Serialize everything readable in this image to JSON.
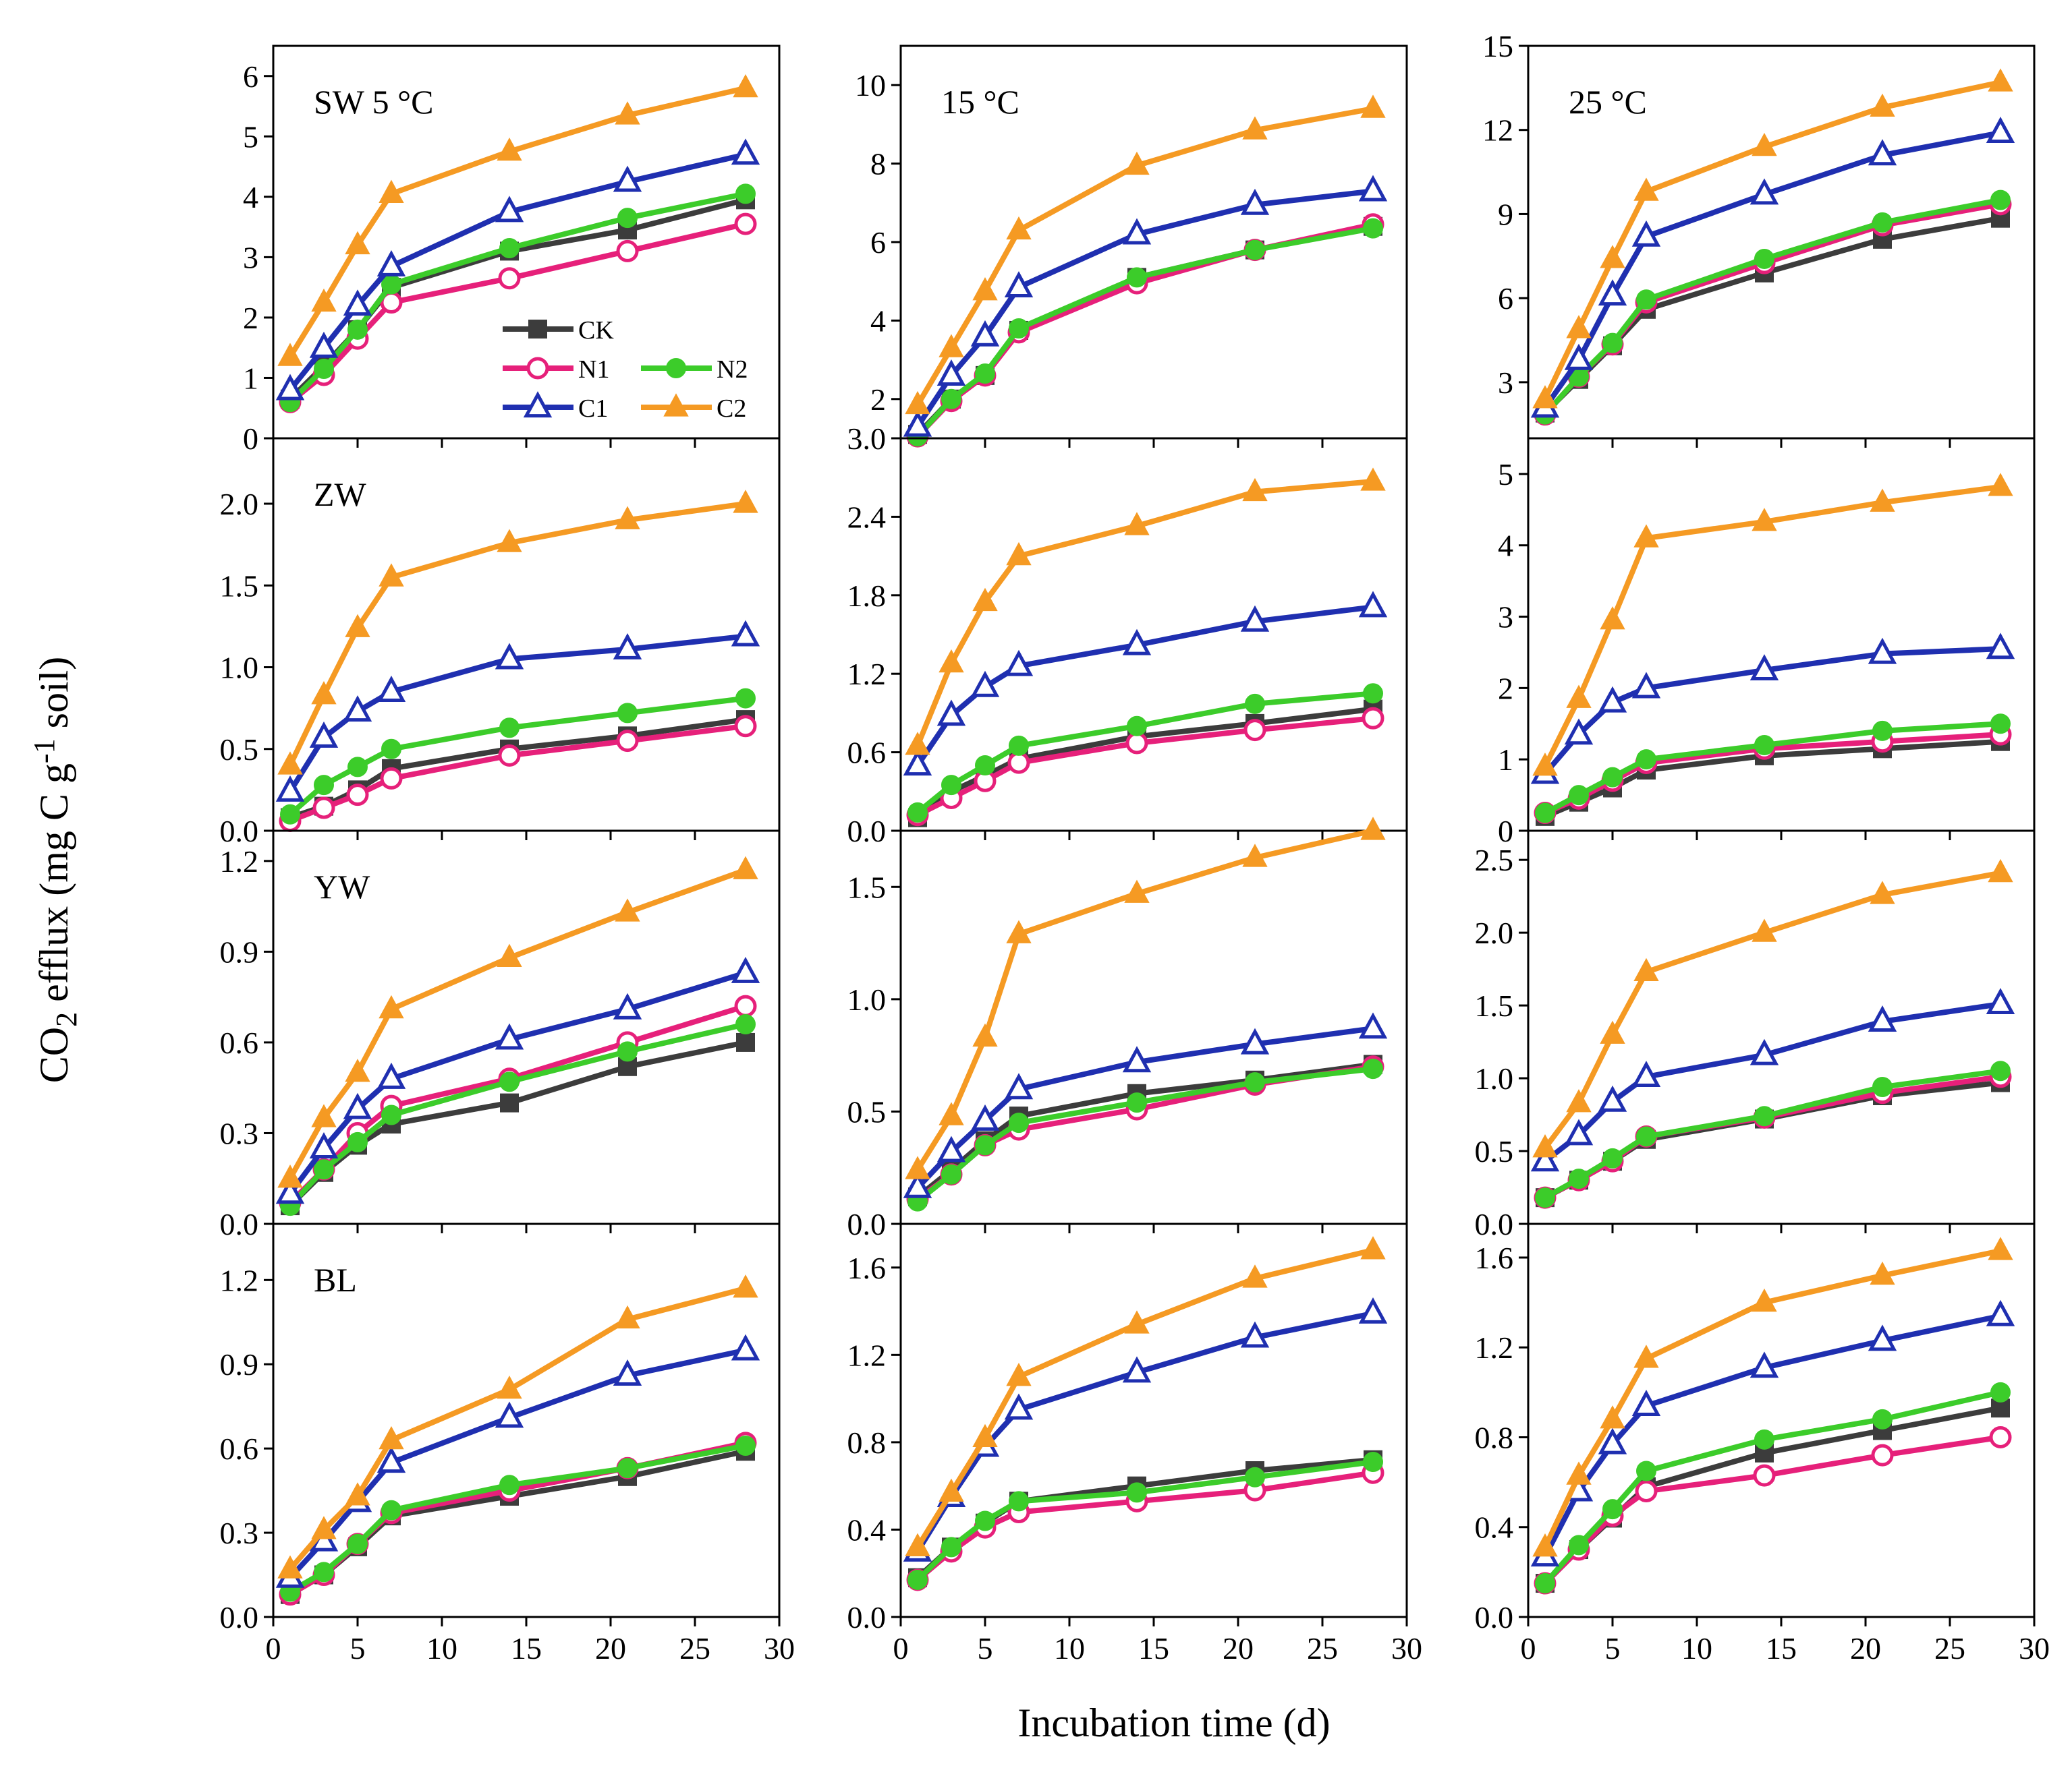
{
  "figure": {
    "ylabel": "CO2 efflux (mg C g-1 soil)",
    "ylabel_parts": {
      "a": "CO",
      "b": "2",
      "c": " efflux (mg C g",
      "d": "-1",
      "e": " soil)"
    },
    "xlabel": "Incubation time (d)"
  },
  "legend": [
    {
      "key": "CK",
      "label": "CK"
    },
    {
      "key": "N1",
      "label": "N1"
    },
    {
      "key": "N2",
      "label": "N2"
    },
    {
      "key": "C1",
      "label": "C1"
    },
    {
      "key": "C2",
      "label": "C2"
    }
  ],
  "series_styles": {
    "CK": {
      "color": "#3c3c3c",
      "marker": "square",
      "filled": true
    },
    "N1": {
      "color": "#e6207a",
      "marker": "circle",
      "filled": false
    },
    "N2": {
      "color": "#3ccc2a",
      "marker": "circle",
      "filled": true
    },
    "C1": {
      "color": "#1f2fb0",
      "marker": "triangle",
      "filled": false
    },
    "C2": {
      "color": "#f59a23",
      "marker": "triangle",
      "filled": true
    }
  },
  "chart_data": [
    {
      "type": "line",
      "row": 0,
      "col": 0,
      "label": "SW  5 °C",
      "ylim": [
        0,
        6.5
      ],
      "yticks": [
        0,
        1,
        2,
        3,
        4,
        5,
        6
      ],
      "xlim": [
        0,
        30
      ],
      "xticks": [
        0,
        5,
        10,
        15,
        20,
        25,
        30
      ],
      "show_xticklabels": false,
      "show_legend": true,
      "x": [
        1,
        3,
        5,
        7,
        14,
        21,
        28
      ],
      "series": [
        {
          "name": "CK",
          "values": [
            0.65,
            1.2,
            1.8,
            2.5,
            3.1,
            3.45,
            3.95
          ]
        },
        {
          "name": "N1",
          "values": [
            0.6,
            1.05,
            1.65,
            2.25,
            2.65,
            3.1,
            3.55
          ]
        },
        {
          "name": "N2",
          "values": [
            0.6,
            1.15,
            1.8,
            2.55,
            3.15,
            3.65,
            4.05
          ]
        },
        {
          "name": "C1",
          "values": [
            0.8,
            1.5,
            2.2,
            2.85,
            3.75,
            4.25,
            4.7
          ]
        },
        {
          "name": "C2",
          "values": [
            1.35,
            2.25,
            3.2,
            4.05,
            4.75,
            5.35,
            5.8
          ]
        }
      ]
    },
    {
      "type": "line",
      "row": 0,
      "col": 1,
      "label": "15 °C",
      "ylim": [
        1,
        11
      ],
      "yticks": [
        2,
        4,
        6,
        8,
        10
      ],
      "xlim": [
        0,
        30
      ],
      "xticks": [
        0,
        5,
        10,
        15,
        20,
        25,
        30
      ],
      "show_xticklabels": false,
      "x": [
        1,
        3,
        5,
        7,
        14,
        21,
        28
      ],
      "series": [
        {
          "name": "CK",
          "values": [
            1.1,
            2.0,
            2.6,
            3.75,
            5.1,
            5.8,
            6.4
          ]
        },
        {
          "name": "N1",
          "values": [
            1.05,
            1.95,
            2.6,
            3.7,
            4.95,
            5.8,
            6.45
          ]
        },
        {
          "name": "N2",
          "values": [
            1.05,
            2.0,
            2.65,
            3.8,
            5.1,
            5.8,
            6.35
          ]
        },
        {
          "name": "C1",
          "values": [
            1.3,
            2.6,
            3.6,
            4.85,
            6.2,
            6.95,
            7.3
          ]
        },
        {
          "name": "C2",
          "values": [
            1.85,
            3.3,
            4.75,
            6.3,
            7.95,
            8.85,
            9.4
          ]
        }
      ]
    },
    {
      "type": "line",
      "row": 0,
      "col": 2,
      "label": "25 °C",
      "ylim": [
        1,
        15
      ],
      "yticks": [
        3,
        6,
        9,
        12,
        15
      ],
      "xlim": [
        0,
        30
      ],
      "xticks": [
        0,
        5,
        10,
        15,
        20,
        25,
        30
      ],
      "show_xticklabels": false,
      "x": [
        1,
        3,
        5,
        7,
        14,
        21,
        28
      ],
      "series": [
        {
          "name": "CK",
          "values": [
            1.9,
            3.1,
            4.3,
            5.6,
            6.9,
            8.1,
            8.85
          ]
        },
        {
          "name": "N1",
          "values": [
            1.85,
            3.2,
            4.35,
            5.85,
            7.25,
            8.6,
            9.35
          ]
        },
        {
          "name": "N2",
          "values": [
            1.85,
            3.2,
            4.4,
            5.95,
            7.4,
            8.7,
            9.5
          ]
        },
        {
          "name": "C1",
          "values": [
            2.1,
            3.8,
            6.1,
            8.2,
            9.7,
            11.1,
            11.9
          ]
        },
        {
          "name": "C2",
          "values": [
            2.4,
            4.9,
            7.4,
            9.8,
            11.4,
            12.8,
            13.7
          ]
        }
      ]
    },
    {
      "type": "line",
      "row": 1,
      "col": 0,
      "label": "ZW",
      "ylim": [
        0,
        2.4
      ],
      "yticks": [
        0.0,
        0.5,
        1.0,
        1.5,
        2.0
      ],
      "xlim": [
        0,
        30
      ],
      "xticks": [
        0,
        5,
        10,
        15,
        20,
        25,
        30
      ],
      "show_xticklabels": false,
      "x": [
        1,
        3,
        5,
        7,
        14,
        21,
        28
      ],
      "series": [
        {
          "name": "CK",
          "values": [
            0.08,
            0.15,
            0.25,
            0.38,
            0.5,
            0.58,
            0.68
          ]
        },
        {
          "name": "N1",
          "values": [
            0.06,
            0.14,
            0.22,
            0.32,
            0.46,
            0.55,
            0.64
          ]
        },
        {
          "name": "N2",
          "values": [
            0.1,
            0.28,
            0.39,
            0.5,
            0.63,
            0.72,
            0.81
          ]
        },
        {
          "name": "C1",
          "values": [
            0.24,
            0.57,
            0.73,
            0.85,
            1.05,
            1.11,
            1.19
          ]
        },
        {
          "name": "C2",
          "values": [
            0.4,
            0.83,
            1.24,
            1.55,
            1.76,
            1.9,
            2.0
          ]
        }
      ]
    },
    {
      "type": "line",
      "row": 1,
      "col": 1,
      "label": "",
      "ylim": [
        0,
        3.0
      ],
      "yticks": [
        0.0,
        0.6,
        1.2,
        1.8,
        2.4,
        3.0
      ],
      "yticklabel_decimals": 1,
      "xlim": [
        0,
        30
      ],
      "xticks": [
        0,
        5,
        10,
        15,
        20,
        25,
        30
      ],
      "show_xticklabels": false,
      "x": [
        1,
        3,
        5,
        7,
        14,
        21,
        28
      ],
      "series": [
        {
          "name": "CK",
          "values": [
            0.1,
            0.3,
            0.42,
            0.55,
            0.72,
            0.82,
            0.93
          ]
        },
        {
          "name": "N1",
          "values": [
            0.12,
            0.25,
            0.38,
            0.52,
            0.67,
            0.77,
            0.86
          ]
        },
        {
          "name": "N2",
          "values": [
            0.14,
            0.35,
            0.5,
            0.65,
            0.8,
            0.97,
            1.05
          ]
        },
        {
          "name": "C1",
          "values": [
            0.5,
            0.88,
            1.1,
            1.26,
            1.42,
            1.6,
            1.71
          ]
        },
        {
          "name": "C2",
          "values": [
            0.65,
            1.28,
            1.75,
            2.1,
            2.33,
            2.59,
            2.67
          ]
        }
      ]
    },
    {
      "type": "line",
      "row": 1,
      "col": 2,
      "label": "",
      "ylim": [
        0,
        5.5
      ],
      "yticks": [
        0,
        1,
        2,
        3,
        4,
        5
      ],
      "xlim": [
        0,
        30
      ],
      "xticks": [
        0,
        5,
        10,
        15,
        20,
        25,
        30
      ],
      "show_xticklabels": false,
      "x": [
        1,
        3,
        5,
        7,
        14,
        21,
        28
      ],
      "series": [
        {
          "name": "CK",
          "values": [
            0.2,
            0.4,
            0.6,
            0.85,
            1.05,
            1.15,
            1.25
          ]
        },
        {
          "name": "N1",
          "values": [
            0.25,
            0.45,
            0.7,
            0.95,
            1.15,
            1.25,
            1.35
          ]
        },
        {
          "name": "N2",
          "values": [
            0.25,
            0.5,
            0.75,
            1.0,
            1.2,
            1.4,
            1.5
          ]
        },
        {
          "name": "C1",
          "values": [
            0.8,
            1.35,
            1.8,
            2.0,
            2.25,
            2.48,
            2.55
          ]
        },
        {
          "name": "C2",
          "values": [
            0.9,
            1.85,
            2.95,
            4.1,
            4.33,
            4.6,
            4.82
          ]
        }
      ]
    },
    {
      "type": "line",
      "row": 2,
      "col": 0,
      "label": "YW",
      "ylim": [
        0,
        1.3
      ],
      "yticks": [
        0.0,
        0.3,
        0.6,
        0.9,
        1.2
      ],
      "xlim": [
        0,
        30
      ],
      "xticks": [
        0,
        5,
        10,
        15,
        20,
        25,
        30
      ],
      "show_xticklabels": false,
      "x": [
        1,
        3,
        5,
        7,
        14,
        21,
        28
      ],
      "series": [
        {
          "name": "CK",
          "values": [
            0.06,
            0.17,
            0.26,
            0.33,
            0.4,
            0.52,
            0.6
          ]
        },
        {
          "name": "N1",
          "values": [
            0.07,
            0.18,
            0.3,
            0.39,
            0.48,
            0.6,
            0.72
          ]
        },
        {
          "name": "N2",
          "values": [
            0.06,
            0.18,
            0.27,
            0.36,
            0.47,
            0.57,
            0.66
          ]
        },
        {
          "name": "C1",
          "values": [
            0.1,
            0.25,
            0.38,
            0.48,
            0.61,
            0.71,
            0.83
          ]
        },
        {
          "name": "C2",
          "values": [
            0.15,
            0.35,
            0.5,
            0.71,
            0.88,
            1.03,
            1.17
          ]
        }
      ]
    },
    {
      "type": "line",
      "row": 2,
      "col": 1,
      "label": "",
      "ylim": [
        0,
        1.75
      ],
      "yticks": [
        0.0,
        0.5,
        1.0,
        1.5
      ],
      "xlim": [
        0,
        30
      ],
      "xticks": [
        0,
        5,
        10,
        15,
        20,
        25,
        30
      ],
      "show_xticklabels": false,
      "x": [
        1,
        3,
        5,
        7,
        14,
        21,
        28
      ],
      "series": [
        {
          "name": "CK",
          "values": [
            0.12,
            0.24,
            0.37,
            0.48,
            0.58,
            0.64,
            0.71
          ]
        },
        {
          "name": "N1",
          "values": [
            0.11,
            0.22,
            0.35,
            0.42,
            0.51,
            0.62,
            0.7
          ]
        },
        {
          "name": "N2",
          "values": [
            0.1,
            0.22,
            0.35,
            0.45,
            0.54,
            0.63,
            0.69
          ]
        },
        {
          "name": "C1",
          "values": [
            0.16,
            0.32,
            0.46,
            0.6,
            0.72,
            0.8,
            0.87
          ]
        },
        {
          "name": "C2",
          "values": [
            0.24,
            0.48,
            0.83,
            1.29,
            1.47,
            1.63,
            1.75
          ]
        }
      ]
    },
    {
      "type": "line",
      "row": 2,
      "col": 2,
      "label": "",
      "ylim": [
        0,
        2.7
      ],
      "yticks": [
        0.0,
        0.5,
        1.0,
        1.5,
        2.0,
        2.5
      ],
      "xlim": [
        0,
        30
      ],
      "xticks": [
        0,
        5,
        10,
        15,
        20,
        25,
        30
      ],
      "show_xticklabels": false,
      "x": [
        1,
        3,
        5,
        7,
        14,
        21,
        28
      ],
      "series": [
        {
          "name": "CK",
          "values": [
            0.18,
            0.3,
            0.43,
            0.58,
            0.72,
            0.88,
            0.97
          ]
        },
        {
          "name": "N1",
          "values": [
            0.18,
            0.3,
            0.43,
            0.6,
            0.73,
            0.9,
            1.01
          ]
        },
        {
          "name": "N2",
          "values": [
            0.18,
            0.31,
            0.45,
            0.6,
            0.74,
            0.94,
            1.05
          ]
        },
        {
          "name": "C1",
          "values": [
            0.43,
            0.61,
            0.84,
            1.01,
            1.16,
            1.39,
            1.51
          ]
        },
        {
          "name": "C2",
          "values": [
            0.52,
            0.83,
            1.3,
            1.73,
            2.0,
            2.26,
            2.41
          ]
        }
      ]
    },
    {
      "type": "line",
      "row": 3,
      "col": 0,
      "label": "BL",
      "ylim": [
        0,
        1.4
      ],
      "yticks": [
        0.0,
        0.3,
        0.6,
        0.9,
        1.2
      ],
      "xlim": [
        0,
        30
      ],
      "xticks": [
        0,
        5,
        10,
        15,
        20,
        25,
        30
      ],
      "show_xticklabels": true,
      "x": [
        1,
        3,
        5,
        7,
        14,
        21,
        28
      ],
      "series": [
        {
          "name": "CK",
          "values": [
            0.08,
            0.15,
            0.25,
            0.36,
            0.43,
            0.5,
            0.59
          ]
        },
        {
          "name": "N1",
          "values": [
            0.08,
            0.15,
            0.26,
            0.37,
            0.45,
            0.53,
            0.62
          ]
        },
        {
          "name": "N2",
          "values": [
            0.09,
            0.16,
            0.26,
            0.38,
            0.47,
            0.53,
            0.61
          ]
        },
        {
          "name": "C1",
          "values": [
            0.14,
            0.27,
            0.41,
            0.55,
            0.71,
            0.86,
            0.95
          ]
        },
        {
          "name": "C2",
          "values": [
            0.17,
            0.31,
            0.43,
            0.63,
            0.81,
            1.06,
            1.17
          ]
        }
      ]
    },
    {
      "type": "line",
      "row": 3,
      "col": 1,
      "label": "",
      "ylim": [
        0,
        1.8
      ],
      "yticks": [
        0.0,
        0.4,
        0.8,
        1.2,
        1.6
      ],
      "xlim": [
        0,
        30
      ],
      "xticks": [
        0,
        5,
        10,
        15,
        20,
        25,
        30
      ],
      "show_xticklabels": true,
      "x": [
        1,
        3,
        5,
        7,
        14,
        21,
        28
      ],
      "series": [
        {
          "name": "CK",
          "values": [
            0.18,
            0.32,
            0.43,
            0.53,
            0.6,
            0.67,
            0.72
          ]
        },
        {
          "name": "N1",
          "values": [
            0.17,
            0.3,
            0.41,
            0.48,
            0.53,
            0.58,
            0.66
          ]
        },
        {
          "name": "N2",
          "values": [
            0.17,
            0.32,
            0.44,
            0.53,
            0.57,
            0.64,
            0.71
          ]
        },
        {
          "name": "C1",
          "values": [
            0.3,
            0.55,
            0.78,
            0.95,
            1.12,
            1.28,
            1.39
          ]
        },
        {
          "name": "C2",
          "values": [
            0.32,
            0.57,
            0.82,
            1.1,
            1.34,
            1.55,
            1.68
          ]
        }
      ]
    },
    {
      "type": "line",
      "row": 3,
      "col": 2,
      "label": "",
      "ylim": [
        0,
        1.75
      ],
      "yticks": [
        0.0,
        0.4,
        0.8,
        1.2,
        1.6
      ],
      "xlim": [
        0,
        30
      ],
      "xticks": [
        0,
        5,
        10,
        15,
        20,
        25,
        30
      ],
      "show_xticklabels": true,
      "x": [
        1,
        3,
        5,
        7,
        14,
        21,
        28
      ],
      "series": [
        {
          "name": "CK",
          "values": [
            0.15,
            0.3,
            0.44,
            0.58,
            0.73,
            0.83,
            0.93
          ]
        },
        {
          "name": "N1",
          "values": [
            0.15,
            0.3,
            0.45,
            0.56,
            0.63,
            0.72,
            0.8
          ]
        },
        {
          "name": "N2",
          "values": [
            0.15,
            0.32,
            0.48,
            0.65,
            0.79,
            0.88,
            1.0
          ]
        },
        {
          "name": "C1",
          "values": [
            0.27,
            0.56,
            0.77,
            0.94,
            1.11,
            1.23,
            1.34
          ]
        },
        {
          "name": "C2",
          "values": [
            0.31,
            0.63,
            0.88,
            1.15,
            1.4,
            1.52,
            1.63
          ]
        }
      ]
    }
  ]
}
